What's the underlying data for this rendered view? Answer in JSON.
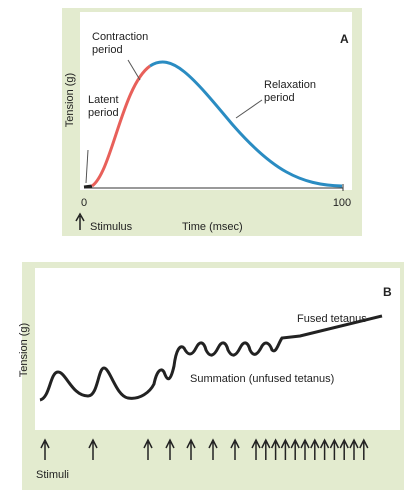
{
  "panel_a": {
    "label": "A",
    "y_label": "Tension (g)",
    "x_label": "Time (msec)",
    "x_start": "0",
    "x_end": "100",
    "stimulus": "Stimulus",
    "annotations": {
      "latent": "Latent\nperiod",
      "contraction": "Contraction\nperiod",
      "relaxation": "Relaxation\nperiod"
    }
  },
  "panel_b": {
    "label": "B",
    "y_label": "Tension (g)",
    "stimuli": "Stimuli",
    "fused": "Fused tetanus",
    "summation": "Summation (unfused tetanus)"
  }
}
